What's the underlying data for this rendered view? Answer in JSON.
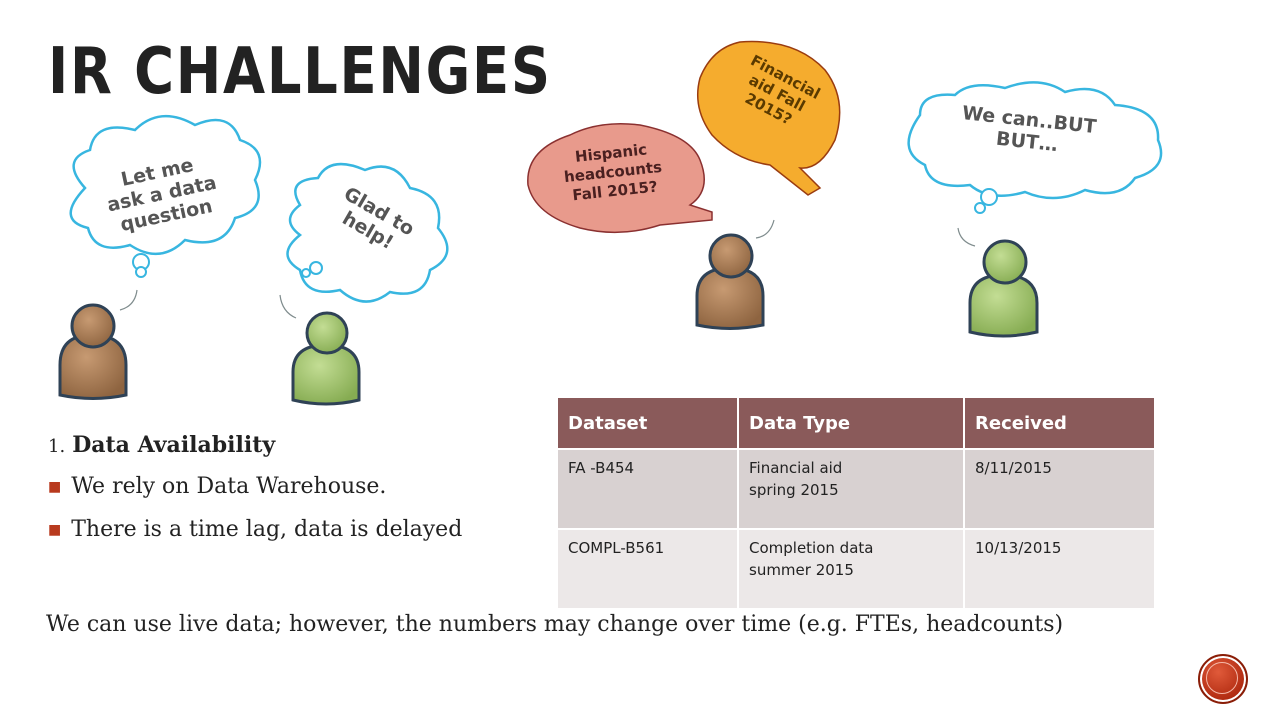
{
  "slide": {
    "title": "IR CHALLENGES",
    "clouds": [
      {
        "id": "let-me",
        "text": "Let me\nask a data\nquestion"
      },
      {
        "id": "glad",
        "text": "Glad to\nhelp!"
      },
      {
        "id": "we-can",
        "text": "We can..BUT\nBUT…"
      }
    ],
    "bubbles": [
      {
        "id": "hispanic",
        "text": "Hispanic\nheadcounts\nFall 2015?",
        "fill": "#e89a8c"
      },
      {
        "id": "financial",
        "text": "Financial\naid Fall\n2015?",
        "fill": "#f5ac2e"
      }
    ],
    "list": {
      "number": "1.",
      "heading": "Data Availability",
      "bullets": [
        "We rely on Data Warehouse.",
        "There is a time lag, data is delayed"
      ]
    },
    "table": {
      "headers": [
        "Dataset",
        "Data Type",
        "Received"
      ],
      "rows": [
        [
          "FA -B454",
          "Financial aid\n spring 2015",
          "8/11/2015"
        ],
        [
          "COMPL-B561",
          "Completion data\nsummer 2015",
          "10/13/2015"
        ]
      ]
    },
    "footer_note": "We can use live data; however, the numbers may change over time (e.g. FTEs, headcounts)"
  },
  "colors": {
    "accent": "#b83a1e",
    "table_header": "#8a5a5a",
    "person_brown": "#a57a55",
    "person_green": "#9cc06a",
    "cloud_stroke": "#38b6e0"
  },
  "icons": [
    "person-icon",
    "thought-cloud-icon",
    "speech-bubble-icon",
    "square-bullet-icon",
    "nav-circle-icon"
  ]
}
